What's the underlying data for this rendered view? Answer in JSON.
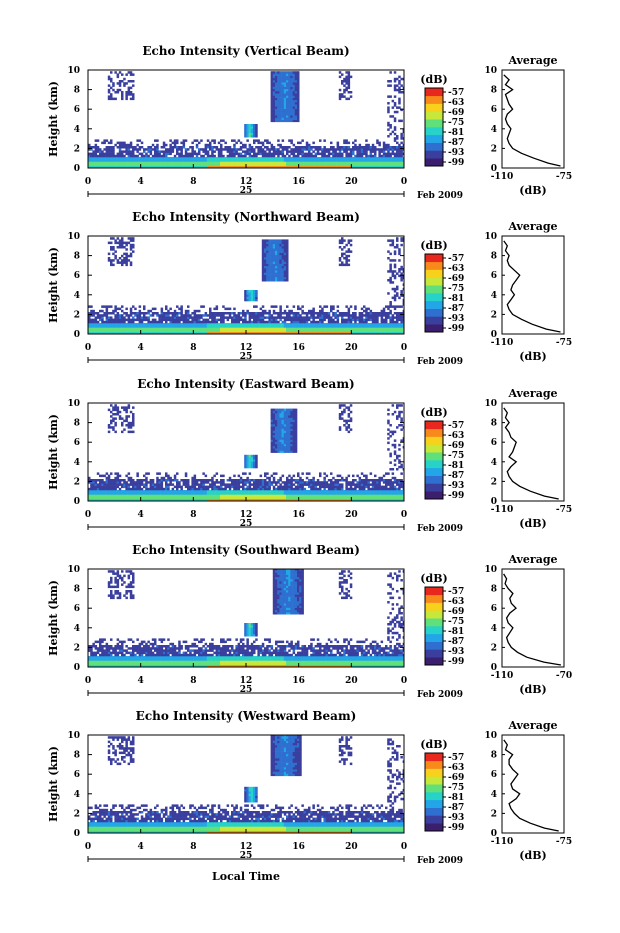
{
  "figure": {
    "xlabel": "Local Time",
    "date_label": "Feb 2009",
    "day_label": "25",
    "colorbar_unit": "(dB)",
    "avg_title": "Average",
    "avg_xlabel": "(dB)"
  },
  "chart_data": [
    {
      "type": "heatmap",
      "title": "Echo Intensity (Vertical Beam)",
      "ylabel": "Height (km)",
      "x_ticks": [
        "0",
        "4",
        "8",
        "12",
        "16",
        "20",
        "0"
      ],
      "y_ticks": [
        "0",
        "2",
        "4",
        "6",
        "8",
        "10"
      ],
      "xlim": [
        0,
        24
      ],
      "ylim": [
        0,
        10
      ],
      "colorbar_ticks": [
        "-57",
        "-63",
        "-69",
        "-75",
        "-81",
        "-87",
        "-93",
        "-99"
      ],
      "plumes": [
        [
          12.3,
          3.2,
          4.6,
          0.5
        ],
        [
          15.0,
          4.8,
          9.8,
          1.1
        ]
      ],
      "average_profile": {
        "title": "Average",
        "xlabel": "(dB)",
        "x_ticks": [
          "-110",
          "-75"
        ],
        "xlim": [
          -110,
          -75
        ],
        "y_ticks": [
          "0",
          "2",
          "4",
          "6",
          "8",
          "10"
        ],
        "height_km": [
          0.2,
          0.5,
          1,
          1.5,
          2,
          2.5,
          3,
          3.5,
          4,
          4.5,
          5,
          5.5,
          6,
          6.5,
          7,
          7.5,
          8,
          8.5,
          9,
          9.5
        ],
        "db": [
          -77,
          -84,
          -92,
          -99,
          -104,
          -106,
          -107,
          -106,
          -105,
          -107,
          -108,
          -107,
          -104,
          -106,
          -107,
          -108,
          -104,
          -108,
          -106,
          -109
        ]
      }
    },
    {
      "type": "heatmap",
      "title": "Echo Intensity (Northward Beam)",
      "ylabel": "Height (km)",
      "x_ticks": [
        "0",
        "4",
        "8",
        "12",
        "16",
        "20",
        "0"
      ],
      "y_ticks": [
        "0",
        "2",
        "4",
        "6",
        "8",
        "10"
      ],
      "xlim": [
        0,
        24
      ],
      "ylim": [
        0,
        10
      ],
      "colorbar_ticks": [
        "-57",
        "-63",
        "-69",
        "-75",
        "-81",
        "-87",
        "-93",
        "-99"
      ],
      "plumes": [
        [
          12.4,
          3.3,
          4.5,
          0.5
        ],
        [
          14.2,
          5.5,
          9.6,
          1.0
        ]
      ],
      "average_profile": {
        "title": "Average",
        "xlabel": "(dB)",
        "x_ticks": [
          "-110",
          "-75"
        ],
        "xlim": [
          -110,
          -75
        ],
        "y_ticks": [
          "0",
          "2",
          "4",
          "6",
          "8",
          "10"
        ],
        "height_km": [
          0.2,
          0.5,
          1,
          1.5,
          2,
          2.5,
          3,
          3.5,
          4,
          4.5,
          5,
          5.5,
          6,
          6.5,
          7,
          7.5,
          8,
          8.5,
          9,
          9.5
        ],
        "db": [
          -77,
          -85,
          -93,
          -99,
          -104,
          -106,
          -107,
          -105,
          -103,
          -105,
          -104,
          -102,
          -100,
          -103,
          -106,
          -107,
          -106,
          -108,
          -107,
          -109
        ]
      }
    },
    {
      "type": "heatmap",
      "title": "Echo Intensity (Eastward Beam)",
      "ylabel": "Height (km)",
      "x_ticks": [
        "0",
        "4",
        "8",
        "12",
        "16",
        "20",
        "0"
      ],
      "y_ticks": [
        "0",
        "2",
        "4",
        "6",
        "8",
        "10"
      ],
      "xlim": [
        0,
        24
      ],
      "ylim": [
        0,
        10
      ],
      "colorbar_ticks": [
        "-57",
        "-63",
        "-69",
        "-75",
        "-81",
        "-87",
        "-93",
        "-99"
      ],
      "plumes": [
        [
          12.3,
          3.3,
          4.8,
          0.5
        ],
        [
          14.8,
          5.0,
          9.5,
          1.0
        ]
      ],
      "average_profile": {
        "title": "Average",
        "xlabel": "(dB)",
        "x_ticks": [
          "-110",
          "-75"
        ],
        "xlim": [
          -110,
          -75
        ],
        "y_ticks": [
          "0",
          "2",
          "4",
          "6",
          "8",
          "10"
        ],
        "height_km": [
          0.2,
          0.5,
          1,
          1.5,
          2,
          2.5,
          3,
          3.5,
          4,
          4.5,
          5,
          5.5,
          6,
          6.5,
          7,
          7.5,
          8,
          8.5,
          9,
          9.5
        ],
        "db": [
          -78,
          -86,
          -94,
          -100,
          -104,
          -106,
          -107,
          -105,
          -102,
          -106,
          -104,
          -103,
          -102,
          -105,
          -106,
          -108,
          -106,
          -108,
          -107,
          -109
        ]
      }
    },
    {
      "type": "heatmap",
      "title": "Echo Intensity (Southward Beam)",
      "ylabel": "Height (km)",
      "x_ticks": [
        "0",
        "4",
        "8",
        "12",
        "16",
        "20",
        "0"
      ],
      "y_ticks": [
        "0",
        "2",
        "4",
        "6",
        "8",
        "10"
      ],
      "xlim": [
        0,
        24
      ],
      "ylim": [
        0,
        10
      ],
      "colorbar_ticks": [
        "-57",
        "-63",
        "-69",
        "-75",
        "-81",
        "-87",
        "-93",
        "-99"
      ],
      "plumes": [
        [
          12.3,
          3.2,
          4.5,
          0.5
        ],
        [
          15.2,
          5.5,
          10,
          1.2
        ]
      ],
      "average_profile": {
        "title": "Average",
        "xlabel": "(dB)",
        "x_ticks": [
          "-110",
          "-70"
        ],
        "xlim": [
          -110,
          -70
        ],
        "y_ticks": [
          "0",
          "2",
          "4",
          "6",
          "8",
          "10"
        ],
        "height_km": [
          0.2,
          0.5,
          1,
          1.5,
          2,
          2.5,
          3,
          3.5,
          4,
          4.5,
          5,
          5.5,
          6,
          6.5,
          7,
          7.5,
          8,
          8.5,
          9,
          9.5
        ],
        "db": [
          -72,
          -83,
          -94,
          -100,
          -104,
          -106,
          -107,
          -105,
          -103,
          -106,
          -107,
          -105,
          -101,
          -104,
          -105,
          -103,
          -106,
          -108,
          -107,
          -109
        ]
      }
    },
    {
      "type": "heatmap",
      "title": "Echo Intensity (Westward Beam)",
      "ylabel": "Height (km)",
      "x_ticks": [
        "0",
        "4",
        "8",
        "12",
        "16",
        "20",
        "0"
      ],
      "y_ticks": [
        "0",
        "2",
        "4",
        "6",
        "8",
        "10"
      ],
      "xlim": [
        0,
        24
      ],
      "ylim": [
        0,
        10
      ],
      "colorbar_ticks": [
        "-57",
        "-63",
        "-69",
        "-75",
        "-81",
        "-87",
        "-93",
        "-99"
      ],
      "plumes": [
        [
          12.4,
          3.2,
          4.8,
          0.5
        ],
        [
          15.0,
          5.8,
          10,
          1.2
        ]
      ],
      "average_profile": {
        "title": "Average",
        "xlabel": "(dB)",
        "x_ticks": [
          "-110",
          "-75"
        ],
        "xlim": [
          -110,
          -75
        ],
        "y_ticks": [
          "0",
          "2",
          "4",
          "6",
          "8",
          "10"
        ],
        "height_km": [
          0.2,
          0.5,
          1,
          1.5,
          2,
          2.5,
          3,
          3.5,
          4,
          4.5,
          5,
          5.5,
          6,
          6.5,
          7,
          7.5,
          8,
          8.5,
          9,
          9.5
        ],
        "db": [
          -78,
          -86,
          -94,
          -100,
          -103,
          -105,
          -106,
          -102,
          -100,
          -104,
          -105,
          -103,
          -101,
          -104,
          -106,
          -106,
          -104,
          -108,
          -107,
          -109
        ]
      }
    }
  ],
  "colormap": [
    "#3b1f6e",
    "#3a3f9e",
    "#2f6fd0",
    "#22a6e8",
    "#27d3c8",
    "#5fe07a",
    "#c7e83a",
    "#f7d11c",
    "#f78a1a",
    "#e8281e"
  ]
}
